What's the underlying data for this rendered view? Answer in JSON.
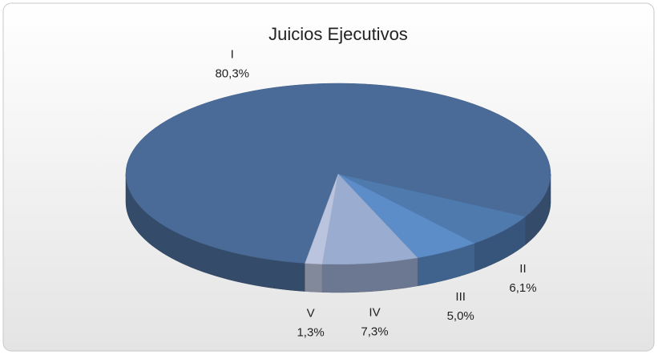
{
  "chart_data": {
    "type": "pie",
    "title": "Juicios Ejecutivos",
    "categories": [
      "I",
      "II",
      "III",
      "IV",
      "V"
    ],
    "values": [
      80.3,
      6.1,
      5.0,
      7.3,
      1.3
    ],
    "value_labels": [
      "80,3%",
      "6,1%",
      "5,0%",
      "7,3%",
      "1,3%"
    ],
    "colors": [
      "#4a6b98",
      "#4f7aae",
      "#5c8dc9",
      "#9aaccf",
      "#bac4de"
    ]
  }
}
